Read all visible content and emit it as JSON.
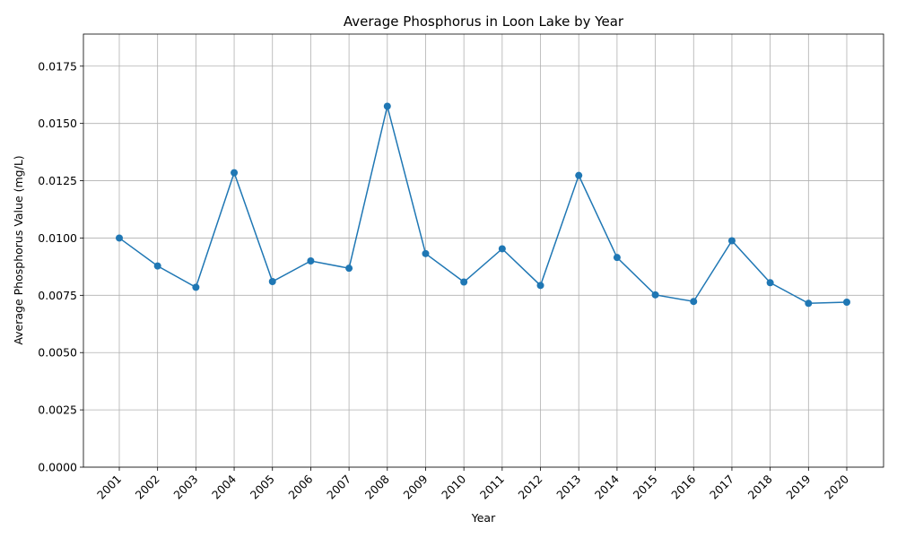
{
  "chart_data": {
    "type": "line",
    "title": "Average Phosphorus in Loon Lake by Year",
    "xlabel": "Year",
    "ylabel": "Average Phosphorus Value (mg/L)",
    "categories": [
      "2001",
      "2002",
      "2003",
      "2004",
      "2005",
      "2006",
      "2007",
      "2008",
      "2009",
      "2010",
      "2011",
      "2012",
      "2013",
      "2014",
      "2015",
      "2016",
      "2017",
      "2018",
      "2019",
      "2020"
    ],
    "values": [
      0.01,
      0.00878,
      0.00785,
      0.01285,
      0.0081,
      0.009,
      0.00868,
      0.01575,
      0.00932,
      0.00808,
      0.00953,
      0.00793,
      0.01273,
      0.00915,
      0.00752,
      0.00723,
      0.00988,
      0.00805,
      0.00715,
      0.0072
    ],
    "ylim": [
      0,
      0.0189
    ],
    "yticks": [
      0.0,
      0.0025,
      0.005,
      0.0075,
      0.01,
      0.0125,
      0.015,
      0.0175
    ],
    "ytick_labels": [
      "0.0000",
      "0.0025",
      "0.0050",
      "0.0075",
      "0.0100",
      "0.0125",
      "0.0150",
      "0.0175"
    ],
    "grid": true,
    "marker": "circle",
    "line_color": "#1f77b4"
  }
}
